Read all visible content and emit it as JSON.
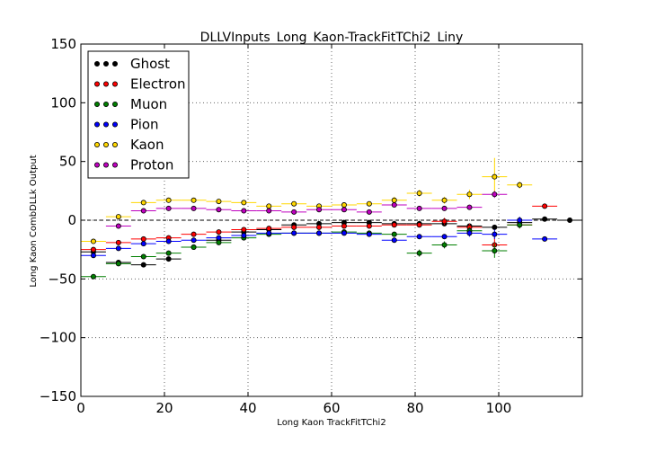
{
  "chart_data": {
    "type": "scatter",
    "title": "DLLVInputs_Long_Kaon-TrackFitTChi2_Liny",
    "xlabel": "Long Kaon TrackFitTChi2",
    "ylabel": "Long Kaon CombDLLk Output",
    "xlim": [
      0,
      120
    ],
    "ylim": [
      -150,
      150
    ],
    "xticks": [
      0,
      20,
      40,
      60,
      80,
      100
    ],
    "yticks": [
      -150,
      -100,
      -50,
      0,
      50,
      100,
      150
    ],
    "grid": true,
    "legend_position": "top-left",
    "bin_half_width": 3,
    "series": [
      {
        "name": "Ghost",
        "color": "#000000",
        "x": [
          3,
          9,
          15,
          21,
          27,
          33,
          39,
          45,
          51,
          57,
          63,
          69,
          75,
          81,
          87,
          93,
          99,
          105,
          111,
          117
        ],
        "y": [
          -27,
          -36,
          -38,
          -33,
          -23,
          -17,
          -10,
          -8,
          -4,
          -3,
          -2,
          -2,
          -3,
          -3,
          -3,
          -5,
          -6,
          -2,
          1,
          0
        ],
        "yerr": [
          2,
          2,
          2,
          2,
          2,
          2,
          2,
          2,
          2,
          2,
          2,
          2,
          2,
          2,
          2,
          2,
          2,
          2,
          2,
          1
        ]
      },
      {
        "name": "Electron",
        "color": "#ff0000",
        "x": [
          3,
          9,
          15,
          21,
          27,
          33,
          39,
          45,
          51,
          57,
          63,
          69,
          75,
          81,
          87,
          93,
          99,
          105,
          111
        ],
        "y": [
          -25,
          -19,
          -16,
          -15,
          -12,
          -10,
          -8,
          -7,
          -6,
          -6,
          -5,
          -5,
          -4,
          -4,
          -1,
          -6,
          -21,
          -4,
          12
        ],
        "yerr": [
          2,
          2,
          2,
          2,
          2,
          2,
          2,
          2,
          2,
          2,
          2,
          2,
          2,
          2,
          3,
          3,
          6,
          3,
          2
        ]
      },
      {
        "name": "Muon",
        "color": "#007f00",
        "x": [
          3,
          9,
          15,
          21,
          27,
          33,
          39,
          45,
          51,
          57,
          63,
          69,
          75,
          81,
          87,
          93,
          99,
          105
        ],
        "y": [
          -48,
          -37,
          -31,
          -28,
          -23,
          -19,
          -15,
          -12,
          -11,
          -11,
          -10,
          -11,
          -12,
          -28,
          -21,
          -9,
          -26,
          -4
        ],
        "yerr": [
          2,
          2,
          2,
          2,
          2,
          2,
          2,
          2,
          2,
          2,
          2,
          2,
          2,
          3,
          3,
          3,
          6,
          3
        ]
      },
      {
        "name": "Pion",
        "color": "#0000ff",
        "x": [
          3,
          9,
          15,
          21,
          27,
          33,
          39,
          45,
          51,
          57,
          63,
          69,
          75,
          81,
          87,
          93,
          99,
          105,
          111
        ],
        "y": [
          -30,
          -24,
          -20,
          -18,
          -17,
          -15,
          -13,
          -11,
          -11,
          -11,
          -11,
          -12,
          -17,
          -14,
          -14,
          -11,
          -12,
          0,
          -16
        ],
        "yerr": [
          2,
          2,
          2,
          2,
          2,
          2,
          2,
          2,
          2,
          2,
          2,
          2,
          2,
          2,
          2,
          3,
          4,
          3,
          2
        ]
      },
      {
        "name": "Kaon",
        "color": "#ffd700",
        "x": [
          3,
          9,
          15,
          21,
          27,
          33,
          39,
          45,
          51,
          57,
          63,
          69,
          75,
          81,
          87,
          93,
          99,
          105
        ],
        "y": [
          -18,
          3,
          15,
          17,
          17,
          16,
          15,
          12,
          14,
          12,
          13,
          14,
          17,
          23,
          17,
          22,
          37,
          30
        ],
        "yerr": [
          2,
          2,
          2,
          2,
          2,
          2,
          2,
          2,
          2,
          2,
          2,
          2,
          3,
          3,
          3,
          4,
          16,
          3
        ]
      },
      {
        "name": "Proton",
        "color": "#bf00bf",
        "x": [
          9,
          15,
          21,
          27,
          33,
          39,
          45,
          51,
          57,
          63,
          69,
          75,
          81,
          87,
          93,
          99
        ],
        "y": [
          -5,
          8,
          10,
          10,
          9,
          8,
          8,
          7,
          9,
          9,
          7,
          13,
          10,
          10,
          11,
          22
        ],
        "yerr": [
          2,
          2,
          2,
          2,
          2,
          2,
          2,
          2,
          2,
          2,
          2,
          2,
          2,
          2,
          2,
          3
        ]
      }
    ]
  }
}
